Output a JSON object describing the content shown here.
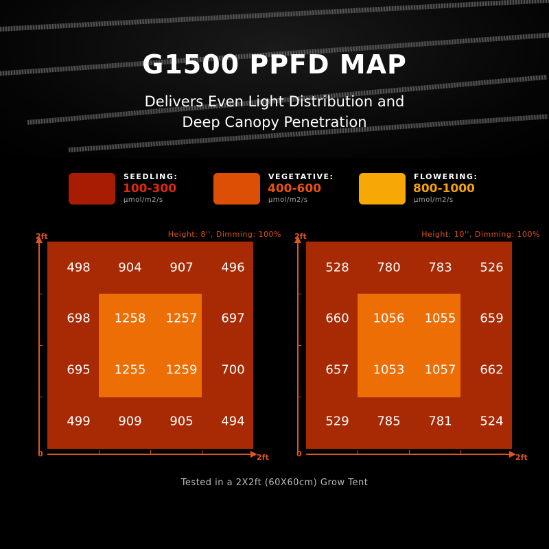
{
  "title": "G1500 PPFD MAP",
  "subtitle_line1": "Delivers Even Light Distribution and",
  "subtitle_line2": "Deep Canopy Penetration",
  "legend": [
    {
      "name": "SEEDLING:",
      "range": "100-300",
      "unit": "μmol/m2/s",
      "color": "#a81c04",
      "text_color": "#e02a10"
    },
    {
      "name": "VEGETATIVE:",
      "range": "400-600",
      "unit": "μmol/m2/s",
      "color": "#dc4f04",
      "text_color": "#e8520e"
    },
    {
      "name": "FLOWERING:",
      "range": "800-1000",
      "unit": "μmol/m2/s",
      "color": "#f8a804",
      "text_color": "#f5a300"
    }
  ],
  "maps": [
    {
      "condition": "Height: 8'', Dimming: 100%",
      "y_label": "2ft",
      "x_label": "2ft",
      "origin": "0",
      "grid": [
        [
          "498",
          "904",
          "907",
          "496"
        ],
        [
          "698",
          "1258",
          "1257",
          "697"
        ],
        [
          "695",
          "1255",
          "1259",
          "700"
        ],
        [
          "499",
          "909",
          "905",
          "494"
        ]
      ]
    },
    {
      "condition": "Height: 10'', Dimming: 100%",
      "y_label": "2ft",
      "x_label": "2ft",
      "origin": "0",
      "grid": [
        [
          "528",
          "780",
          "783",
          "526"
        ],
        [
          "660",
          "1056",
          "1055",
          "659"
        ],
        [
          "657",
          "1053",
          "1057",
          "662"
        ],
        [
          "529",
          "785",
          "781",
          "524"
        ]
      ]
    }
  ],
  "footer": "Tested in a 2X2ft (60X60cm) Grow Tent"
}
